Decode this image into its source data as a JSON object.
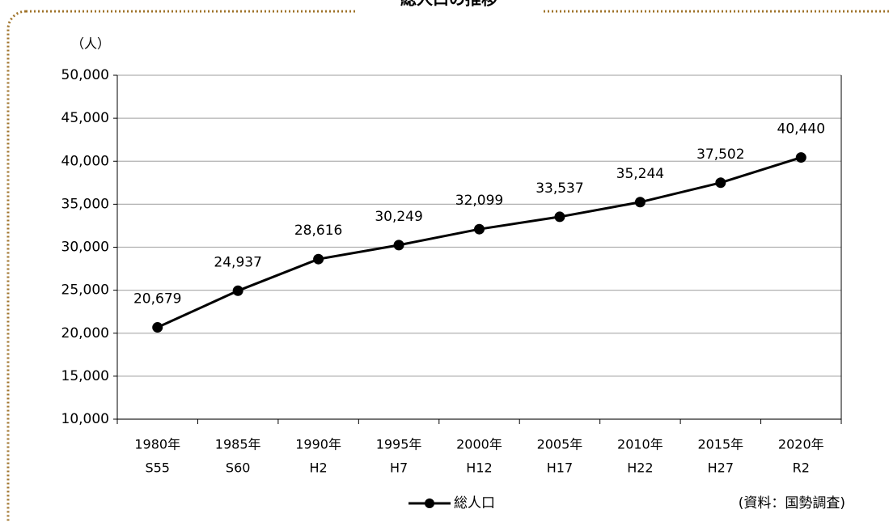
{
  "chart_data": {
    "type": "line",
    "title": "総人口の推移",
    "y_label": "（人）",
    "source": "(資料：国勢調査)",
    "categories": [
      [
        "1980年",
        "S55"
      ],
      [
        "1985年",
        "S60"
      ],
      [
        "1990年",
        "H2"
      ],
      [
        "1995年",
        "H7"
      ],
      [
        "2000年",
        "H12"
      ],
      [
        "2005年",
        "H17"
      ],
      [
        "2010年",
        "H22"
      ],
      [
        "2015年",
        "H27"
      ],
      [
        "2020年",
        "R2"
      ]
    ],
    "series": [
      {
        "name": "総人口",
        "color": "#000000",
        "values": [
          20679,
          24937,
          28616,
          30249,
          32099,
          33537,
          35244,
          37502,
          40440
        ],
        "value_labels": [
          "20,679",
          "24,937",
          "28,616",
          "30,249",
          "32,099",
          "33,537",
          "35,244",
          "37,502",
          "40,440"
        ]
      }
    ],
    "ylim": [
      10000,
      50000
    ],
    "yticks": [
      {
        "value": 10000,
        "label": "10,000"
      },
      {
        "value": 15000,
        "label": "15,000"
      },
      {
        "value": 20000,
        "label": "20,000"
      },
      {
        "value": 25000,
        "label": "25,000"
      },
      {
        "value": 30000,
        "label": "30,000"
      },
      {
        "value": 35000,
        "label": "35,000"
      },
      {
        "value": 40000,
        "label": "40,000"
      },
      {
        "value": 45000,
        "label": "45,000"
      },
      {
        "value": 50000,
        "label": "50,000"
      }
    ],
    "grid": true
  }
}
